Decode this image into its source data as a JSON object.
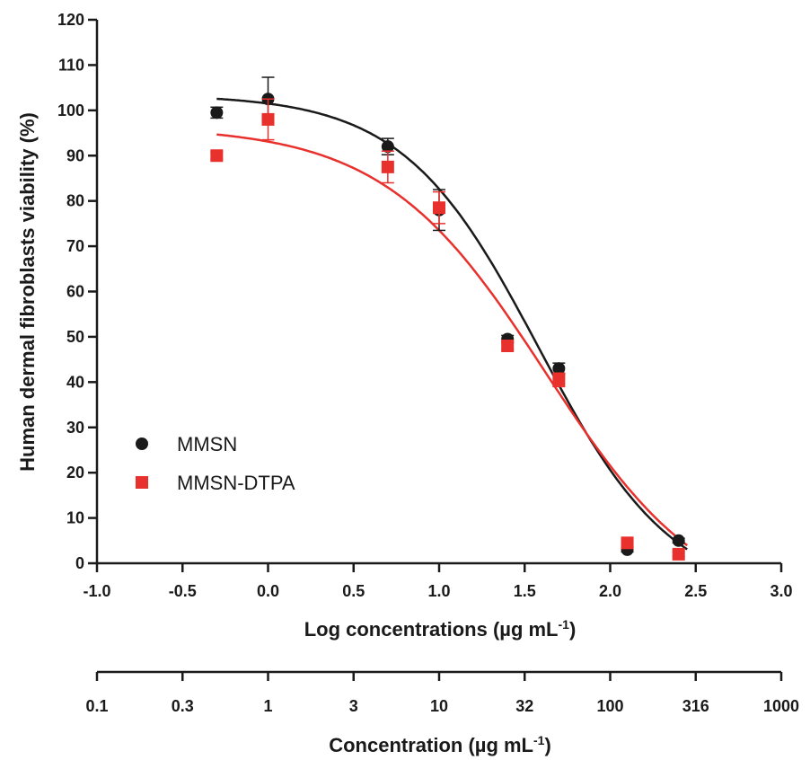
{
  "chart_data": {
    "type": "scatter",
    "xlabel_main": "Log concentrations (µg mL",
    "xlabel_main_sup": "-1",
    "xlabel_main_close": ")",
    "ylabel": "Human dermal fibroblasts viability (%)",
    "xlim": [
      -1.0,
      3.0
    ],
    "ylim": [
      0,
      120
    ],
    "x_ticks": [
      -1.0,
      -0.5,
      0.0,
      0.5,
      1.0,
      1.5,
      2.0,
      2.5,
      3.0
    ],
    "x_tick_labels": [
      "-1.0",
      "-0.5",
      "0.0",
      "0.5",
      "1.0",
      "1.5",
      "2.0",
      "2.5",
      "3.0"
    ],
    "y_ticks": [
      0,
      10,
      20,
      30,
      40,
      50,
      60,
      70,
      80,
      90,
      100,
      110,
      120
    ],
    "y_tick_labels": [
      "0",
      "10",
      "20",
      "30",
      "40",
      "50",
      "60",
      "70",
      "80",
      "90",
      "100",
      "110",
      "120"
    ],
    "secondary_axis": {
      "label": "Concentration (µg mL",
      "label_sup": "-1",
      "label_close": ")",
      "ticks_log": [
        -1.0,
        -0.5,
        0.0,
        0.5,
        1.0,
        1.5,
        2.0,
        2.5,
        3.0
      ],
      "tick_labels": [
        "0.1",
        "0.3",
        "1",
        "3",
        "10",
        "32",
        "100",
        "316",
        "1000"
      ]
    },
    "legend_position": "left-middle",
    "grid": false,
    "series": [
      {
        "name": "MMSN",
        "marker": "circle",
        "color": "#1a1a1a",
        "x": [
          -0.3,
          0.0,
          0.7,
          1.0,
          1.4,
          1.7,
          2.1,
          2.4
        ],
        "y": [
          99.5,
          102.5,
          92.0,
          78.0,
          49.5,
          43.0,
          3.0,
          5.0
        ],
        "err": [
          1.2,
          4.8,
          1.8,
          4.5,
          0.8,
          1.2,
          0.5,
          0.5
        ],
        "fit": {
          "top": 103.5,
          "bottom": -8,
          "log_ec50": 1.58,
          "hill": -1.1
        }
      },
      {
        "name": "MMSN-DTPA",
        "marker": "square",
        "color": "#e8302c",
        "x": [
          -0.3,
          0.0,
          0.7,
          1.0,
          1.4,
          1.7,
          2.1,
          2.4
        ],
        "y": [
          90.0,
          98.0,
          87.5,
          78.5,
          48.0,
          40.5,
          4.5,
          2.0
        ],
        "err": [
          0.8,
          4.5,
          3.5,
          3.5,
          0.8,
          1.5,
          0.8,
          0.5
        ],
        "fit": {
          "top": 96.5,
          "bottom": -12,
          "log_ec50": 1.62,
          "hill": -0.92
        }
      }
    ]
  }
}
